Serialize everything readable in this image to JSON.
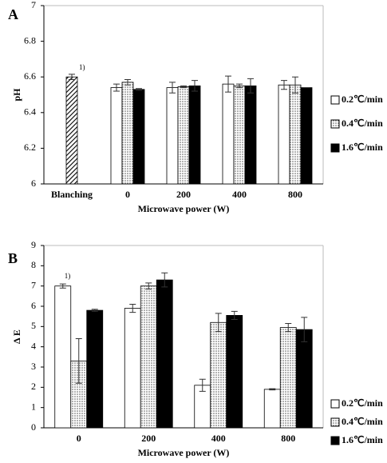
{
  "chart_data": [
    {
      "type": "bar",
      "panel_label": "A",
      "ylabel": "pH",
      "xlabel": "Microwave power (W)",
      "categories": [
        "Blanching",
        "0",
        "200",
        "400",
        "800"
      ],
      "ylim": [
        6,
        7
      ],
      "yticks": [
        6,
        6.2,
        6.4,
        6.6,
        6.8,
        7
      ],
      "legend": "right",
      "blanching": {
        "value": 6.6,
        "error": 0.015,
        "label": "1)",
        "fill": "hatch"
      },
      "series": [
        {
          "name": "0.2℃/min",
          "fill": "white",
          "color": "#000000",
          "values": [
            null,
            6.54,
            6.54,
            6.56,
            6.555
          ],
          "errors": [
            null,
            0.02,
            0.03,
            0.045,
            0.025
          ]
        },
        {
          "name": "0.4℃/min",
          "fill": "dots",
          "color": "#000000",
          "values": [
            null,
            6.57,
            6.545,
            6.55,
            6.555
          ],
          "errors": [
            null,
            0.015,
            0.005,
            0.01,
            0.045
          ]
        },
        {
          "name": "1.6℃/min",
          "fill": "black",
          "color": "#000000",
          "values": [
            null,
            6.53,
            6.55,
            6.55,
            6.54
          ],
          "errors": [
            null,
            0.005,
            0.03,
            0.04,
            0
          ]
        }
      ]
    },
    {
      "type": "bar",
      "panel_label": "B",
      "ylabel": "Δ E",
      "xlabel": "Microwave power (W)",
      "categories": [
        "0",
        "200",
        "400",
        "800"
      ],
      "ylim": [
        0,
        9
      ],
      "yticks": [
        0,
        1,
        2,
        3,
        4,
        5,
        6,
        7,
        8,
        9
      ],
      "legend": "right",
      "annotation": "1)",
      "series": [
        {
          "name": "0.2℃/min",
          "fill": "white",
          "color": "#000000",
          "values": [
            7.0,
            5.9,
            2.1,
            1.9
          ],
          "errors": [
            0.1,
            0.2,
            0.3,
            0.03
          ]
        },
        {
          "name": "0.4℃/min",
          "fill": "dots",
          "color": "#000000",
          "values": [
            3.3,
            7.0,
            5.2,
            4.95
          ],
          "errors": [
            1.1,
            0.15,
            0.45,
            0.2
          ]
        },
        {
          "name": "1.6℃/min",
          "fill": "black",
          "color": "#000000",
          "values": [
            5.8,
            7.3,
            5.55,
            4.85
          ],
          "errors": [
            0.05,
            0.35,
            0.2,
            0.6
          ]
        }
      ]
    }
  ]
}
